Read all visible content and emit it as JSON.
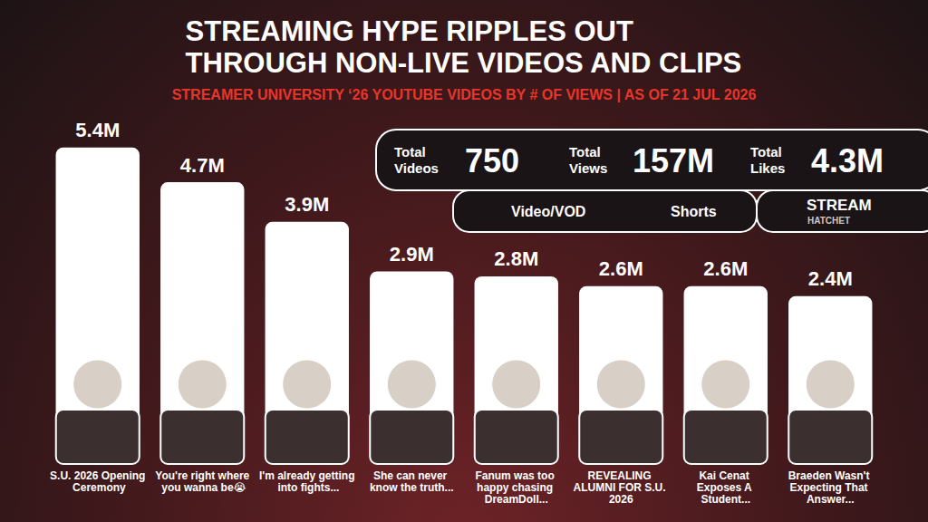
{
  "chart_data": {
    "type": "bar",
    "title": "STREAMING HYPE RIPPLES OUT THROUGH NON-LIVE VIDEOS AND CLIPS",
    "subtitle": "STREAMER UNIVERSITY ‘26 YOUTUBE VIDEOS BY # OF VIEWS | AS OF 21 JUL 2026",
    "categories": [
      "S.U. 2026 Opening Ceremony",
      "You're right where you wanna be😭",
      "I'm already getting into fights...",
      "She can never know the truth...",
      "Fanum was too happy chasing DreamDoll...",
      "REVEALING ALUMNI FOR S.U. 2026",
      "Kai Cenat Exposes A Student...",
      "Braeden Wasn't Expecting That Answer..."
    ],
    "series": [
      {
        "name": "Video/VOD",
        "color": "#ffffff",
        "values": [
          5.4,
          null,
          3.9,
          null,
          null,
          2.6,
          null,
          null
        ],
        "value_labels": [
          "5.4M",
          null,
          "3.9M",
          null,
          null,
          "2.6M",
          null,
          null
        ]
      },
      {
        "name": "Shorts",
        "color": "#ffffff",
        "values": [
          null,
          4.7,
          null,
          2.9,
          2.8,
          null,
          2.6,
          2.4
        ],
        "value_labels": [
          null,
          "4.7M",
          null,
          "2.9M",
          "2.8M",
          null,
          "2.6M",
          "2.4M"
        ]
      }
    ],
    "ylim": [
      0,
      6
    ],
    "tick_labels": "x",
    "grid": false,
    "data_labels": true,
    "legend": "top-right",
    "stats": [
      {
        "label": "Total Videos",
        "value": 750
      },
      {
        "label": "Total Views",
        "value": 157,
        "value_label": "157M"
      },
      {
        "label": "Total Likes",
        "value": 4.3,
        "value_label": "4.3M"
      }
    ],
    "source": "STREAM HATCHET"
  }
}
